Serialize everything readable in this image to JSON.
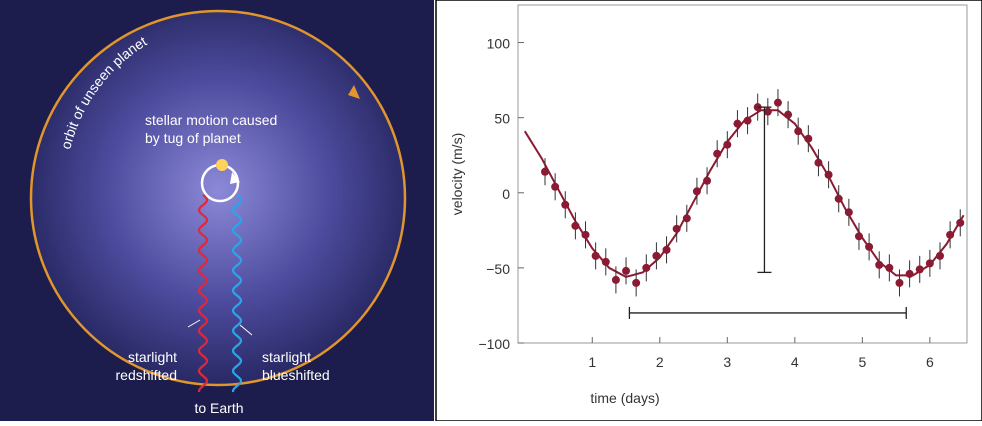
{
  "diagram": {
    "orbit_label": "orbit of unseen planet",
    "motion_label": [
      "stellar motion caused",
      "by tug of planet"
    ],
    "red_label": [
      "starlight",
      "redshifted"
    ],
    "blue_label": [
      "starlight",
      "blueshifted"
    ],
    "earth_label": "to Earth"
  },
  "chart_data": {
    "type": "scatter",
    "x_label": "time (days)",
    "y_label": "velocity (m/s)",
    "color": "#8b1a33",
    "x": [
      0.3,
      0.45,
      0.6,
      0.75,
      0.9,
      1.05,
      1.2,
      1.35,
      1.5,
      1.65,
      1.8,
      1.95,
      2.1,
      2.25,
      2.4,
      2.55,
      2.7,
      2.85,
      3.0,
      3.15,
      3.3,
      3.45,
      3.6,
      3.75,
      3.9,
      4.05,
      4.2,
      4.35,
      4.5,
      4.65,
      4.8,
      4.95,
      5.1,
      5.25,
      5.4,
      5.55,
      5.7,
      5.85,
      6.0,
      6.15,
      6.3,
      6.45
    ],
    "values": [
      14,
      4,
      -8,
      -22,
      -28,
      -42,
      -46,
      -58,
      -52,
      -60,
      -50,
      -42,
      -38,
      -24,
      -17,
      1,
      8,
      26,
      32,
      46,
      48,
      57,
      54,
      60,
      52,
      41,
      36,
      20,
      12,
      -4,
      -13,
      -29,
      -36,
      -48,
      -50,
      -60,
      -54,
      -51,
      -47,
      -42,
      -28,
      -20
    ],
    "error": 9,
    "line": {
      "x": [
        0,
        0.25,
        0.5,
        0.75,
        1,
        1.25,
        1.5,
        1.75,
        2,
        2.25,
        2.5,
        2.75,
        3,
        3.25,
        3.5,
        3.75,
        4,
        4.25,
        4.5,
        4.75,
        5,
        5.25,
        5.5,
        5.75,
        6,
        6.25,
        6.5
      ],
      "values": [
        41,
        23,
        2,
        -19,
        -37,
        -50,
        -56,
        -53,
        -43,
        -27,
        -6,
        15,
        34,
        48,
        55,
        55,
        46,
        30,
        11,
        -11,
        -30,
        -46,
        -55,
        -55,
        -48,
        -34,
        -15
      ]
    },
    "amplitude_bar": {
      "x": 3.55,
      "y": [
        -53,
        57
      ]
    },
    "period_bar": {
      "y": -80,
      "x": [
        1.55,
        5.65
      ]
    },
    "xlim": [
      -0.1,
      6.55
    ],
    "ylim": [
      -100,
      125
    ],
    "xticks": [
      1,
      2,
      3,
      4,
      5,
      6
    ],
    "yticks": [
      {
        "value": -100,
        "label": "−100"
      },
      {
        "value": -50,
        "label": "−50"
      },
      0,
      50,
      100
    ]
  }
}
